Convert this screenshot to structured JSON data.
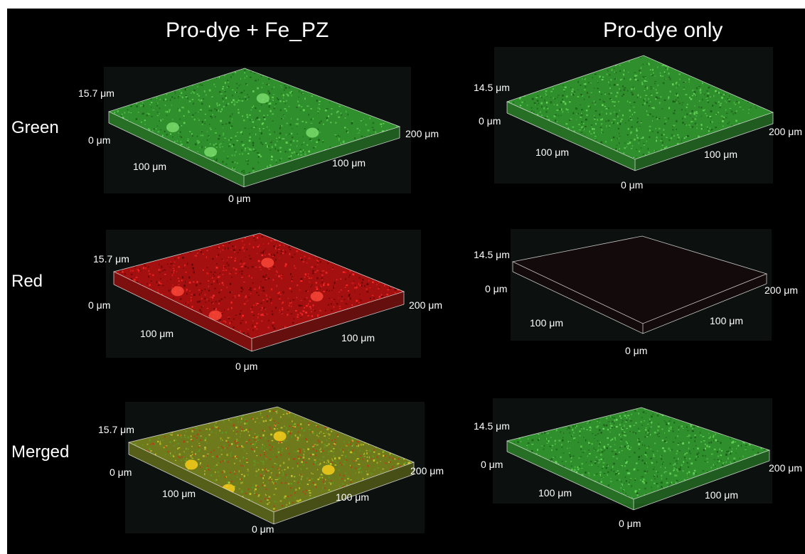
{
  "columns": [
    "Pro-dye + Fe_PZ",
    "Pro-dye only"
  ],
  "rows": [
    "Green",
    "Red",
    "Merged"
  ],
  "panels": [
    {
      "id": "p00",
      "channel": "green",
      "color": "#3fae3a",
      "z_top": "15.7 μm",
      "z_bot": "0 μm",
      "x_far": "200 μm",
      "mid_left": "100 μm",
      "mid_right": "100 μm",
      "origin": "0 μm"
    },
    {
      "id": "p01",
      "channel": "green",
      "color": "#46b43f",
      "z_top": "14.5 μm",
      "z_bot": "0 μm",
      "x_far": "200 μm",
      "mid_left": "100 μm",
      "mid_right": "100 μm",
      "origin": "0 μm"
    },
    {
      "id": "p10",
      "channel": "red",
      "color": "#c81515",
      "z_top": "15.7 μm",
      "z_bot": "0 μm",
      "x_far": "200 μm",
      "mid_left": "100 μm",
      "mid_right": "100 μm",
      "origin": "0 μm"
    },
    {
      "id": "p11",
      "channel": "empty",
      "color": "#1a1010",
      "z_top": "14.5 μm",
      "z_bot": "0 μm",
      "x_far": "200 μm",
      "mid_left": "100 μm",
      "mid_right": "100 μm",
      "origin": "0 μm"
    },
    {
      "id": "p20",
      "channel": "merged",
      "color": "#9a9a22",
      "z_top": "15.7 μm",
      "z_bot": "0 μm",
      "x_far": "200 μm",
      "mid_left": "100 μm",
      "mid_right": "100 μm",
      "origin": "0 μm"
    },
    {
      "id": "p21",
      "channel": "green",
      "color": "#3fae3a",
      "z_top": "14.5 μm",
      "z_bot": "0 μm",
      "x_far": "200 μm",
      "mid_left": "100 μm",
      "mid_right": "100 μm",
      "origin": "0 μm"
    }
  ]
}
